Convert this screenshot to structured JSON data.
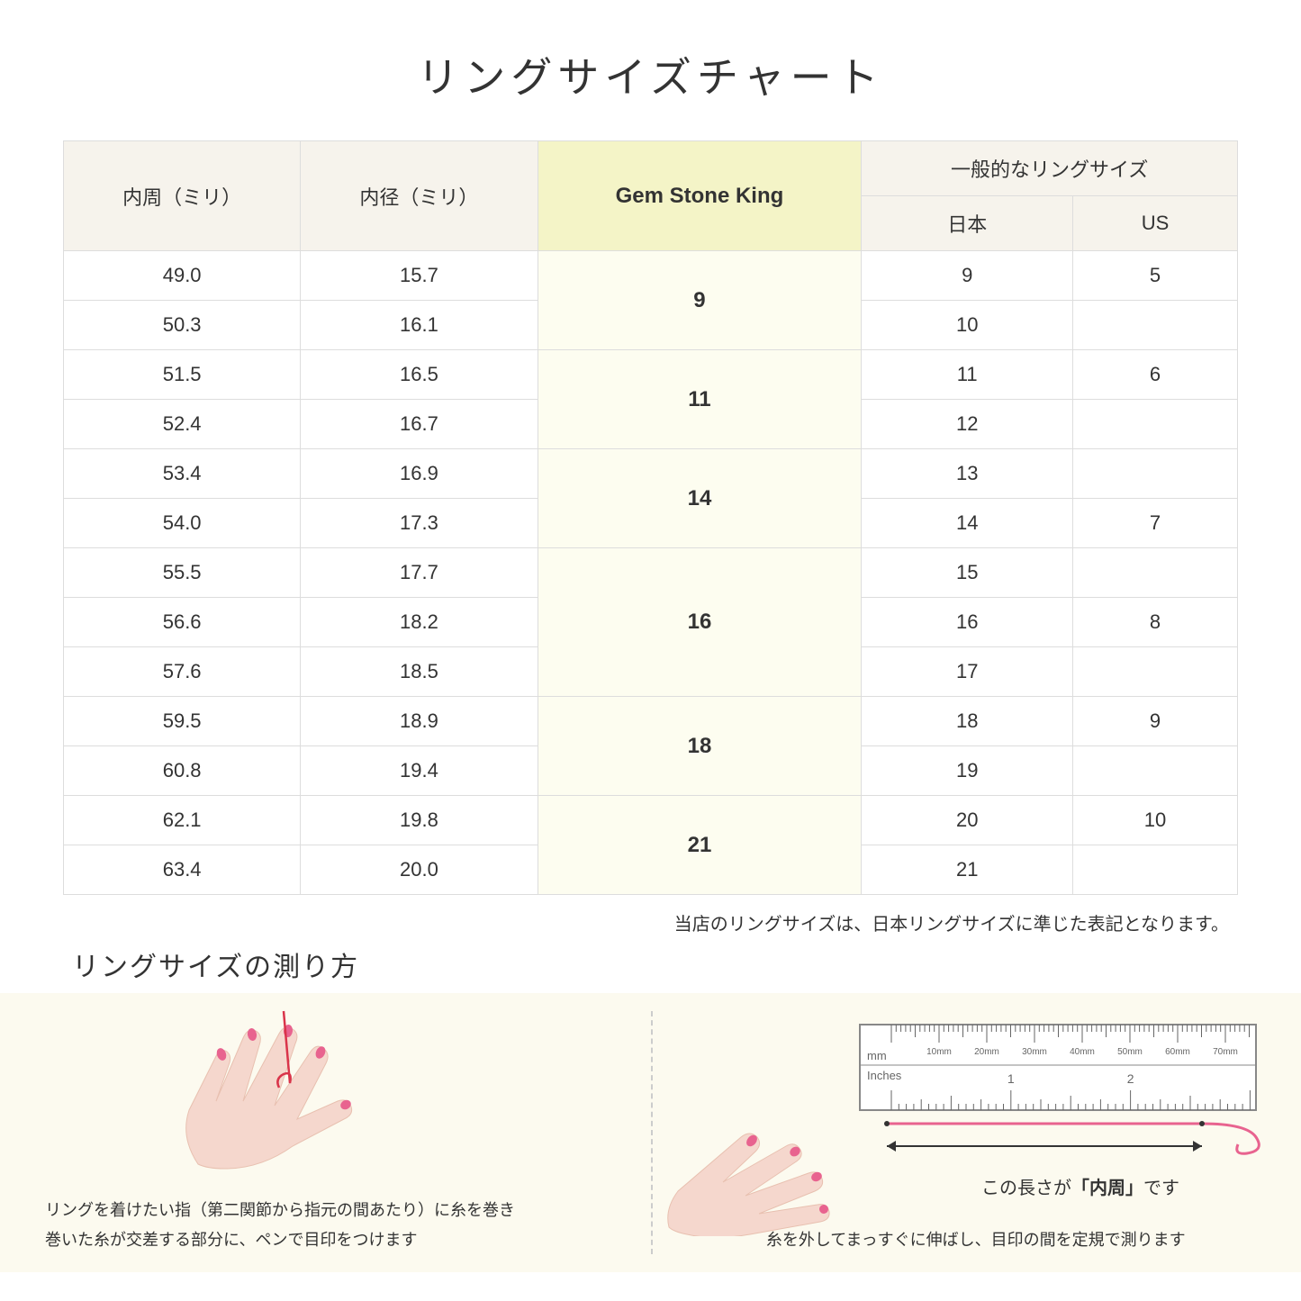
{
  "title": "リングサイズチャート",
  "headers": {
    "col1": "内周（ミリ）",
    "col2": "内径（ミリ）",
    "col3": "Gem Stone King",
    "col4_group": "一般的なリングサイズ",
    "col4a": "日本",
    "col4b": "US"
  },
  "rows": [
    {
      "c1": "49.0",
      "c2": "15.7",
      "gsk": "9",
      "jp": "9",
      "us": "5",
      "gsk_span": 2
    },
    {
      "c1": "50.3",
      "c2": "16.1",
      "jp": "10",
      "us": ""
    },
    {
      "c1": "51.5",
      "c2": "16.5",
      "gsk": "11",
      "jp": "11",
      "us": "6",
      "gsk_span": 2
    },
    {
      "c1": "52.4",
      "c2": "16.7",
      "jp": "12",
      "us": ""
    },
    {
      "c1": "53.4",
      "c2": "16.9",
      "gsk": "14",
      "jp": "13",
      "us": "",
      "gsk_span": 2
    },
    {
      "c1": "54.0",
      "c2": "17.3",
      "jp": "14",
      "us": "7"
    },
    {
      "c1": "55.5",
      "c2": "17.7",
      "gsk": "16",
      "jp": "15",
      "us": "",
      "gsk_span": 3
    },
    {
      "c1": "56.6",
      "c2": "18.2",
      "jp": "16",
      "us": "8"
    },
    {
      "c1": "57.6",
      "c2": "18.5",
      "jp": "17",
      "us": ""
    },
    {
      "c1": "59.5",
      "c2": "18.9",
      "gsk": "18",
      "jp": "18",
      "us": "9",
      "gsk_span": 2
    },
    {
      "c1": "60.8",
      "c2": "19.4",
      "jp": "19",
      "us": ""
    },
    {
      "c1": "62.1",
      "c2": "19.8",
      "gsk": "21",
      "jp": "20",
      "us": "10",
      "gsk_span": 2
    },
    {
      "c1": "63.4",
      "c2": "20.0",
      "jp": "21",
      "us": ""
    }
  ],
  "note": "当店のリングサイズは、日本リングサイズに準じた表記となります。",
  "howto_title": "リングサイズの測り方",
  "caption_left_1": "リングを着けたい指（第二関節から指元の間あたり）に糸を巻き",
  "caption_left_2": "巻いた糸が交差する部分に、ペンで目印をつけます",
  "caption_right": "糸を外してまっすぐに伸ばし、目印の間を定規で測ります",
  "ruler_label_pre": "この長さが",
  "ruler_label_bold": "「内周」",
  "ruler_label_post": "です",
  "ruler": {
    "mm_label": "mm",
    "inches_label": "Inches",
    "mm_ticks": [
      "10mm",
      "20mm",
      "30mm",
      "40mm",
      "50mm",
      "60mm",
      "70mm"
    ],
    "inch_ticks": [
      "1",
      "2"
    ]
  },
  "colors": {
    "hand": "#f5d7cd",
    "nail": "#e8638f",
    "thread": "#d9344a",
    "ruler_border": "#888888",
    "arrow": "#333333"
  }
}
